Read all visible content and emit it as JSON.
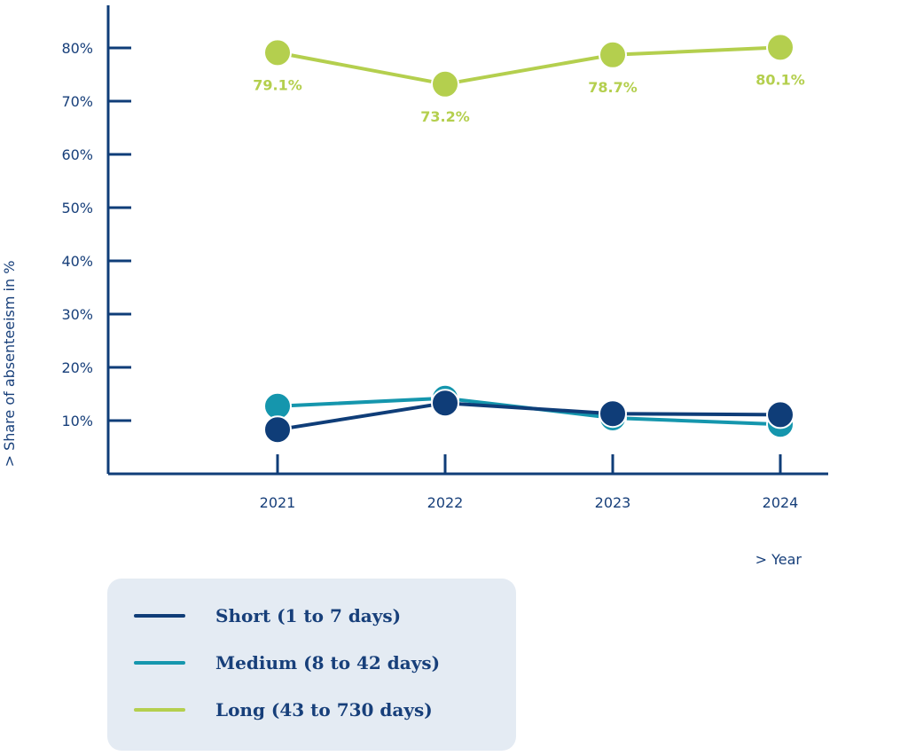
{
  "colors": {
    "axis": "#0f3d78",
    "text": "#173f7a",
    "legend_bg": "#e4ebf3"
  },
  "chart_data": {
    "type": "line",
    "xlabel": "> Year",
    "ylabel": "> Share of absenteeism in %",
    "categories": [
      "2021",
      "2022",
      "2023",
      "2024"
    ],
    "ylim": [
      0,
      88
    ],
    "yticks": [
      10,
      20,
      30,
      40,
      50,
      60,
      70,
      80
    ],
    "ytick_labels": [
      "10%",
      "20%",
      "30%",
      "40%",
      "50%",
      "60%",
      "70%",
      "80%"
    ],
    "grid": false,
    "legend_position": "bottom-left",
    "series": [
      {
        "name": "Long (43 to 730 days)",
        "color": "#b4cf4e",
        "values": [
          79.1,
          73.2,
          78.7,
          80.1
        ],
        "data_labels": [
          "79.1%",
          "73.2%",
          "78.7%",
          "80.1%"
        ]
      },
      {
        "name": "Medium (8 to 42 days)",
        "color": "#1596ad",
        "values": [
          12.7,
          14.2,
          10.5,
          9.3
        ],
        "data_labels": []
      },
      {
        "name": "Short (1 to 7 days)",
        "color": "#0f3d78",
        "values": [
          8.3,
          13.3,
          11.3,
          11.1
        ],
        "data_labels": []
      }
    ]
  }
}
